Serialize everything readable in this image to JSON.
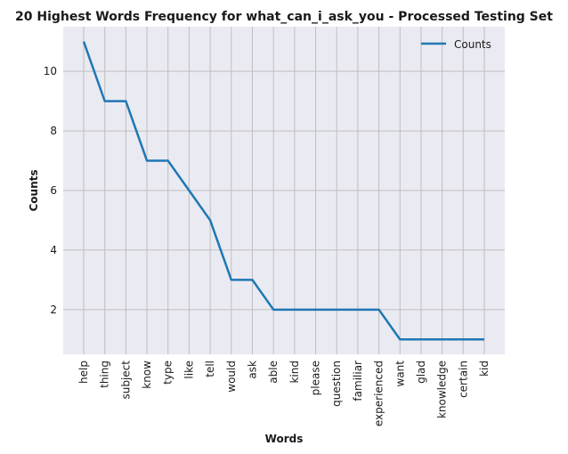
{
  "chart_data": {
    "type": "line",
    "title": "20 Highest Words Frequency for what_can_i_ask_you - Processed Testing Set",
    "xlabel": "Words",
    "ylabel": "Counts",
    "categories": [
      "help",
      "thing",
      "subject",
      "know",
      "type",
      "like",
      "tell",
      "would",
      "ask",
      "able",
      "kind",
      "please",
      "question",
      "familiar",
      "experienced",
      "want",
      "glad",
      "knowledge",
      "certain",
      "kid"
    ],
    "series": [
      {
        "name": "Counts",
        "values": [
          11,
          9,
          9,
          7,
          7,
          6,
          5,
          3,
          3,
          2,
          2,
          2,
          2,
          2,
          2,
          1,
          1,
          1,
          1,
          1
        ]
      }
    ],
    "ylim": [
      0.5,
      11.5
    ],
    "yticks": [
      2,
      4,
      6,
      8,
      10
    ],
    "grid": true,
    "legend_position": "top-right",
    "colors": {
      "series": "#1f77b4",
      "plot_background": "#eaeaf2",
      "grid": "#bfbfbf"
    }
  }
}
